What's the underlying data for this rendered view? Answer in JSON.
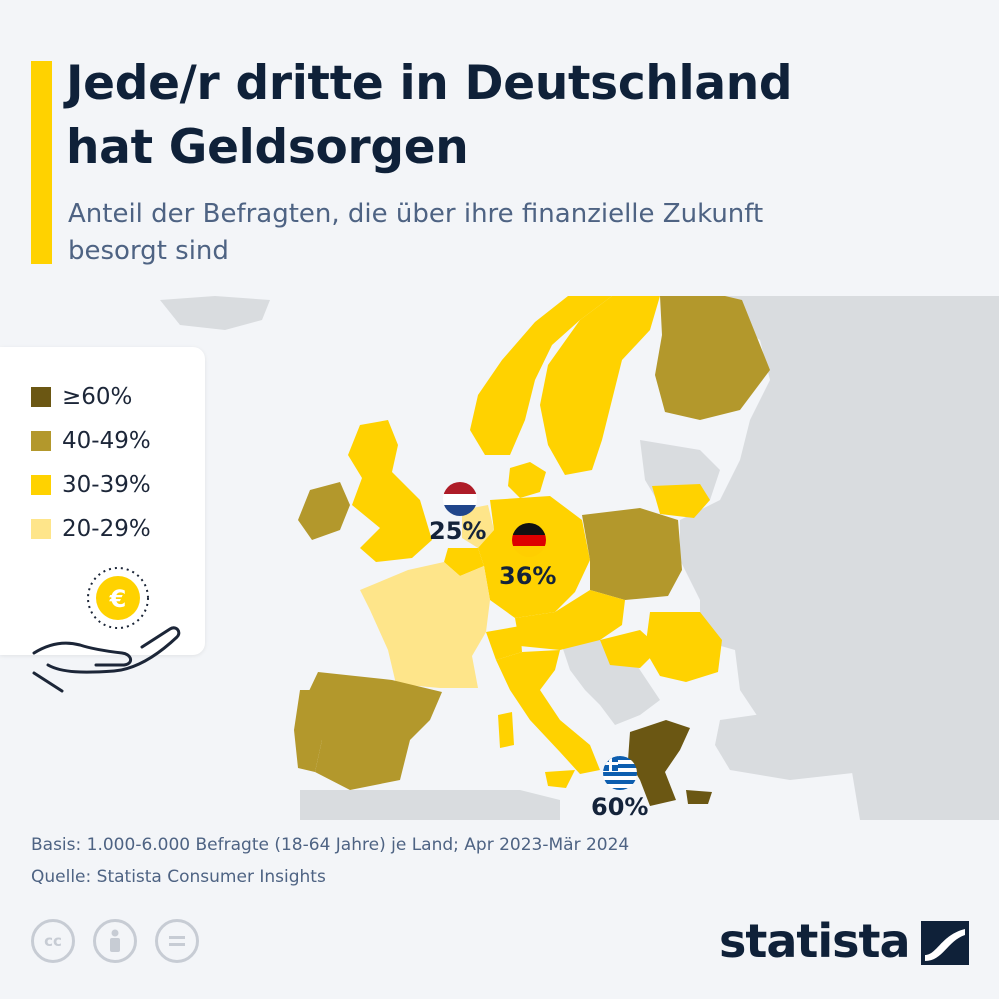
{
  "header": {
    "title_line1": "Jede/r dritte in Deutschland",
    "title_line2": "hat Geldsorgen",
    "subtitle_line1": "Anteil der Befragten, die über ihre finanzielle Zukunft",
    "subtitle_line2": "besorgt sind"
  },
  "legend": [
    {
      "label": "≥60%",
      "color": "#6b5713"
    },
    {
      "label": "40-49%",
      "color": "#b3982c"
    },
    {
      "label": "30-39%",
      "color": "#ffd200"
    },
    {
      "label": "20-29%",
      "color": "#fee58a"
    }
  ],
  "colors": {
    "accent": "#ffd200",
    "no_data": "#d9dcdf",
    "sea": "#f3f5f8",
    "text": "#0f2139"
  },
  "map_data": {
    "highlighted": [
      {
        "country": "Niederlande",
        "value": "25%",
        "label": "25%",
        "flag": "nl-flag"
      },
      {
        "country": "Deutschland",
        "value": "36%",
        "label": "36%",
        "flag": "de-flag"
      },
      {
        "country": "Griechenland",
        "value": "60%",
        "label": "60%",
        "flag": "gr-flag"
      }
    ],
    "categories": {
      "≥60%": [
        "Griechenland"
      ],
      "40-49%": [
        "Finnland",
        "Polen",
        "Spanien",
        "Portugal",
        "Irland"
      ],
      "30-39%": [
        "Deutschland",
        "Vereinigtes Königreich",
        "Norwegen",
        "Schweden",
        "Dänemark",
        "Italien",
        "Österreich",
        "Schweiz",
        "Tschechien",
        "Ungarn",
        "Rumänien",
        "Belgien",
        "Litauen"
      ],
      "20-29%": [
        "Frankreich",
        "Niederlande"
      ]
    }
  },
  "icons": {
    "legend_icon": "euro-coin-hand-icon",
    "brand_icon": "statista-logo-icon"
  },
  "footer": {
    "basis": "Basis: 1.000-6.000 Befragte (18-64 Jahre) je Land; Apr 2023-Mär 2024",
    "source": "Quelle: Statista Consumer Insights",
    "cc_label": "cc",
    "brand": "statista"
  }
}
